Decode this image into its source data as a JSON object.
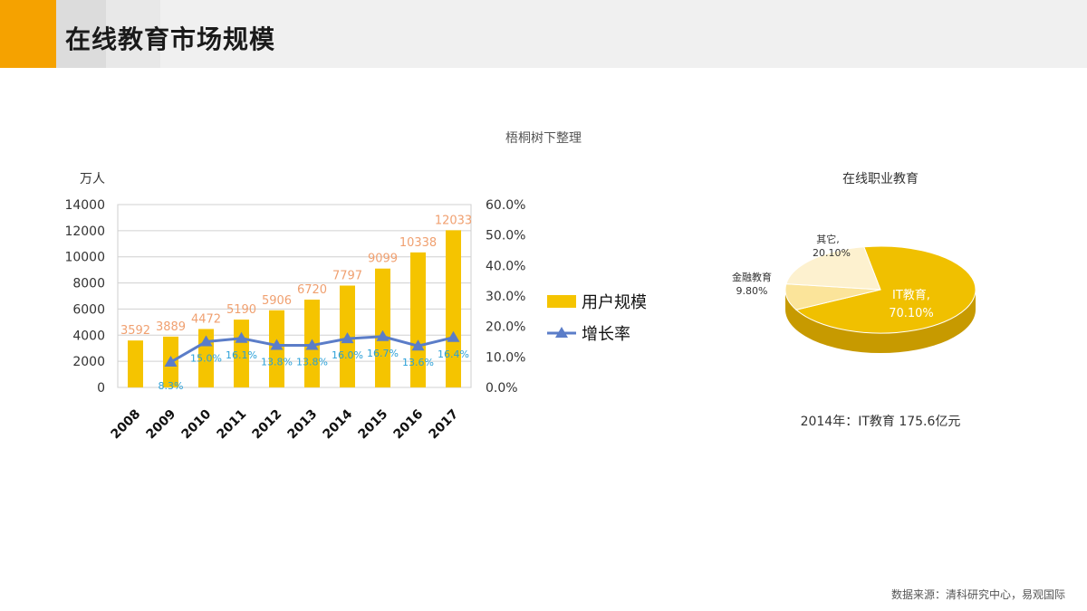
{
  "header": {
    "title": "在线教育市场规模"
  },
  "subtitle": "梧桐树下整理",
  "source": "数据来源：清科研究中心，易观国际",
  "chart_data": [
    {
      "type": "bar",
      "ylabel": "万人",
      "categories": [
        "2008",
        "2009",
        "2010",
        "2011",
        "2012",
        "2013",
        "2014",
        "2015",
        "2016",
        "2017"
      ],
      "series": [
        {
          "name": "用户规模",
          "axis": "left",
          "values": [
            3592,
            3889,
            4472,
            5190,
            5906,
            6720,
            7797,
            9099,
            10338,
            12033
          ]
        },
        {
          "name": "增长率",
          "axis": "right",
          "type": "line",
          "values": [
            null,
            8.3,
            15.0,
            16.1,
            13.8,
            13.8,
            16.0,
            16.7,
            13.6,
            16.4
          ],
          "labels": [
            "",
            "8.3%",
            "15.0%",
            "16.1%",
            "13.8%",
            "13.8%",
            "16.0%",
            "16.7%",
            "13.6%",
            "16.4%"
          ]
        }
      ],
      "ylim": [
        0,
        14000
      ],
      "y_ticks": [
        "0",
        "2000",
        "4000",
        "6000",
        "8000",
        "10000",
        "12000",
        "14000"
      ],
      "y2lim": [
        0,
        60
      ],
      "y2_ticks": [
        "0.0%",
        "10.0%",
        "20.0%",
        "30.0%",
        "40.0%",
        "50.0%",
        "60.0%"
      ],
      "grid": true,
      "legend": "right",
      "colors": {
        "bar": "#f5c400",
        "bar_label": "#f0a070",
        "line": "#5b7dc8",
        "line_label": "#2aa0d8"
      }
    },
    {
      "type": "pie",
      "title": "在线职业教育",
      "slices": [
        {
          "label": "IT教育,",
          "value": 70.1,
          "text": "70.10%",
          "color": "#f0c000"
        },
        {
          "label": "金融教育",
          "value": 9.8,
          "text": "9.80%",
          "color": "#fbe49a"
        },
        {
          "label": "其它,",
          "value": 20.1,
          "text": "20.10%",
          "color": "#fdf1cf"
        }
      ],
      "caption": "2014年：IT教育 175.6亿元"
    }
  ]
}
